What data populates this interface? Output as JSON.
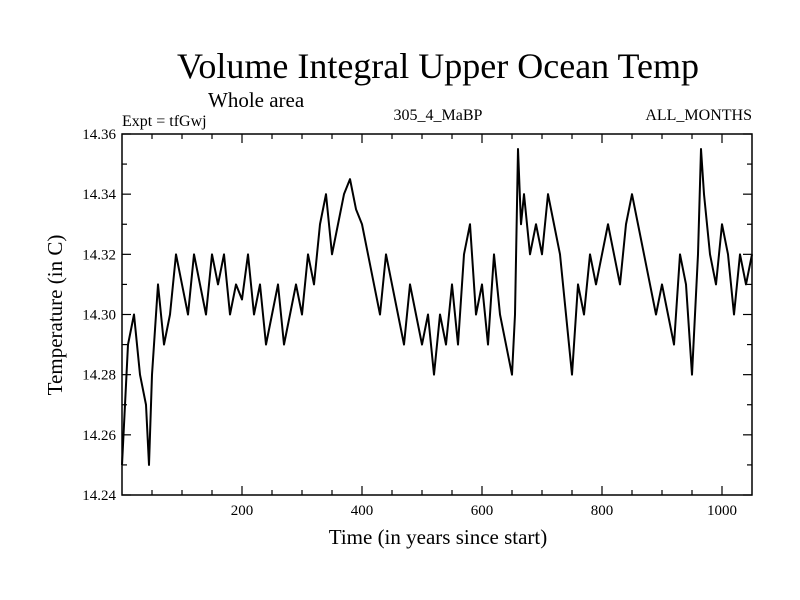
{
  "chart_data": {
    "type": "line",
    "title": "Volume Integral Upper Ocean Temp",
    "subtitle": "Whole area",
    "experiment_label": "Expt = tfGwj",
    "center_label": "305_4_MaBP",
    "right_label": "ALL_MONTHS",
    "xlabel": "Time (in years since start)",
    "ylabel": "Temperature (in C)",
    "xlim": [
      0,
      1050
    ],
    "ylim": [
      14.24,
      14.36
    ],
    "x_ticks": [
      200,
      400,
      600,
      800,
      1000
    ],
    "y_ticks": [
      14.24,
      14.26,
      14.28,
      14.3,
      14.32,
      14.34,
      14.36
    ],
    "y_tick_labels": [
      "14.24",
      "14.26",
      "14.28",
      "14.30",
      "14.32",
      "14.34",
      "14.36"
    ],
    "series": [
      {
        "name": "Upper Ocean Temp",
        "color": "#000000",
        "x": [
          0,
          10,
          20,
          30,
          40,
          45,
          50,
          60,
          70,
          80,
          90,
          100,
          110,
          120,
          130,
          140,
          150,
          160,
          170,
          180,
          190,
          200,
          210,
          220,
          230,
          240,
          250,
          260,
          270,
          280,
          290,
          300,
          310,
          320,
          330,
          340,
          350,
          360,
          370,
          380,
          390,
          400,
          410,
          420,
          430,
          440,
          450,
          460,
          470,
          480,
          490,
          500,
          510,
          520,
          530,
          540,
          550,
          560,
          570,
          580,
          590,
          600,
          610,
          620,
          630,
          640,
          650,
          655,
          660,
          665,
          670,
          680,
          690,
          700,
          710,
          720,
          730,
          740,
          750,
          760,
          770,
          780,
          790,
          800,
          810,
          820,
          830,
          840,
          850,
          860,
          870,
          880,
          890,
          900,
          910,
          920,
          930,
          940,
          950,
          960,
          965,
          970,
          980,
          990,
          1000,
          1010,
          1020,
          1030,
          1040,
          1050
        ],
        "y": [
          14.25,
          14.29,
          14.3,
          14.28,
          14.27,
          14.25,
          14.28,
          14.31,
          14.29,
          14.3,
          14.32,
          14.31,
          14.3,
          14.32,
          14.31,
          14.3,
          14.32,
          14.31,
          14.32,
          14.3,
          14.31,
          14.305,
          14.32,
          14.3,
          14.31,
          14.29,
          14.3,
          14.31,
          14.29,
          14.3,
          14.31,
          14.3,
          14.32,
          14.31,
          14.33,
          14.34,
          14.32,
          14.33,
          14.34,
          14.345,
          14.335,
          14.33,
          14.32,
          14.31,
          14.3,
          14.32,
          14.31,
          14.3,
          14.29,
          14.31,
          14.3,
          14.29,
          14.3,
          14.28,
          14.3,
          14.29,
          14.31,
          14.29,
          14.32,
          14.33,
          14.3,
          14.31,
          14.29,
          14.32,
          14.3,
          14.29,
          14.28,
          14.3,
          14.355,
          14.33,
          14.34,
          14.32,
          14.33,
          14.32,
          14.34,
          14.33,
          14.32,
          14.3,
          14.28,
          14.31,
          14.3,
          14.32,
          14.31,
          14.32,
          14.33,
          14.32,
          14.31,
          14.33,
          14.34,
          14.33,
          14.32,
          14.31,
          14.3,
          14.31,
          14.3,
          14.29,
          14.32,
          14.31,
          14.28,
          14.32,
          14.355,
          14.34,
          14.32,
          14.31,
          14.33,
          14.32,
          14.3,
          14.32,
          14.31,
          14.32
        ]
      }
    ]
  }
}
